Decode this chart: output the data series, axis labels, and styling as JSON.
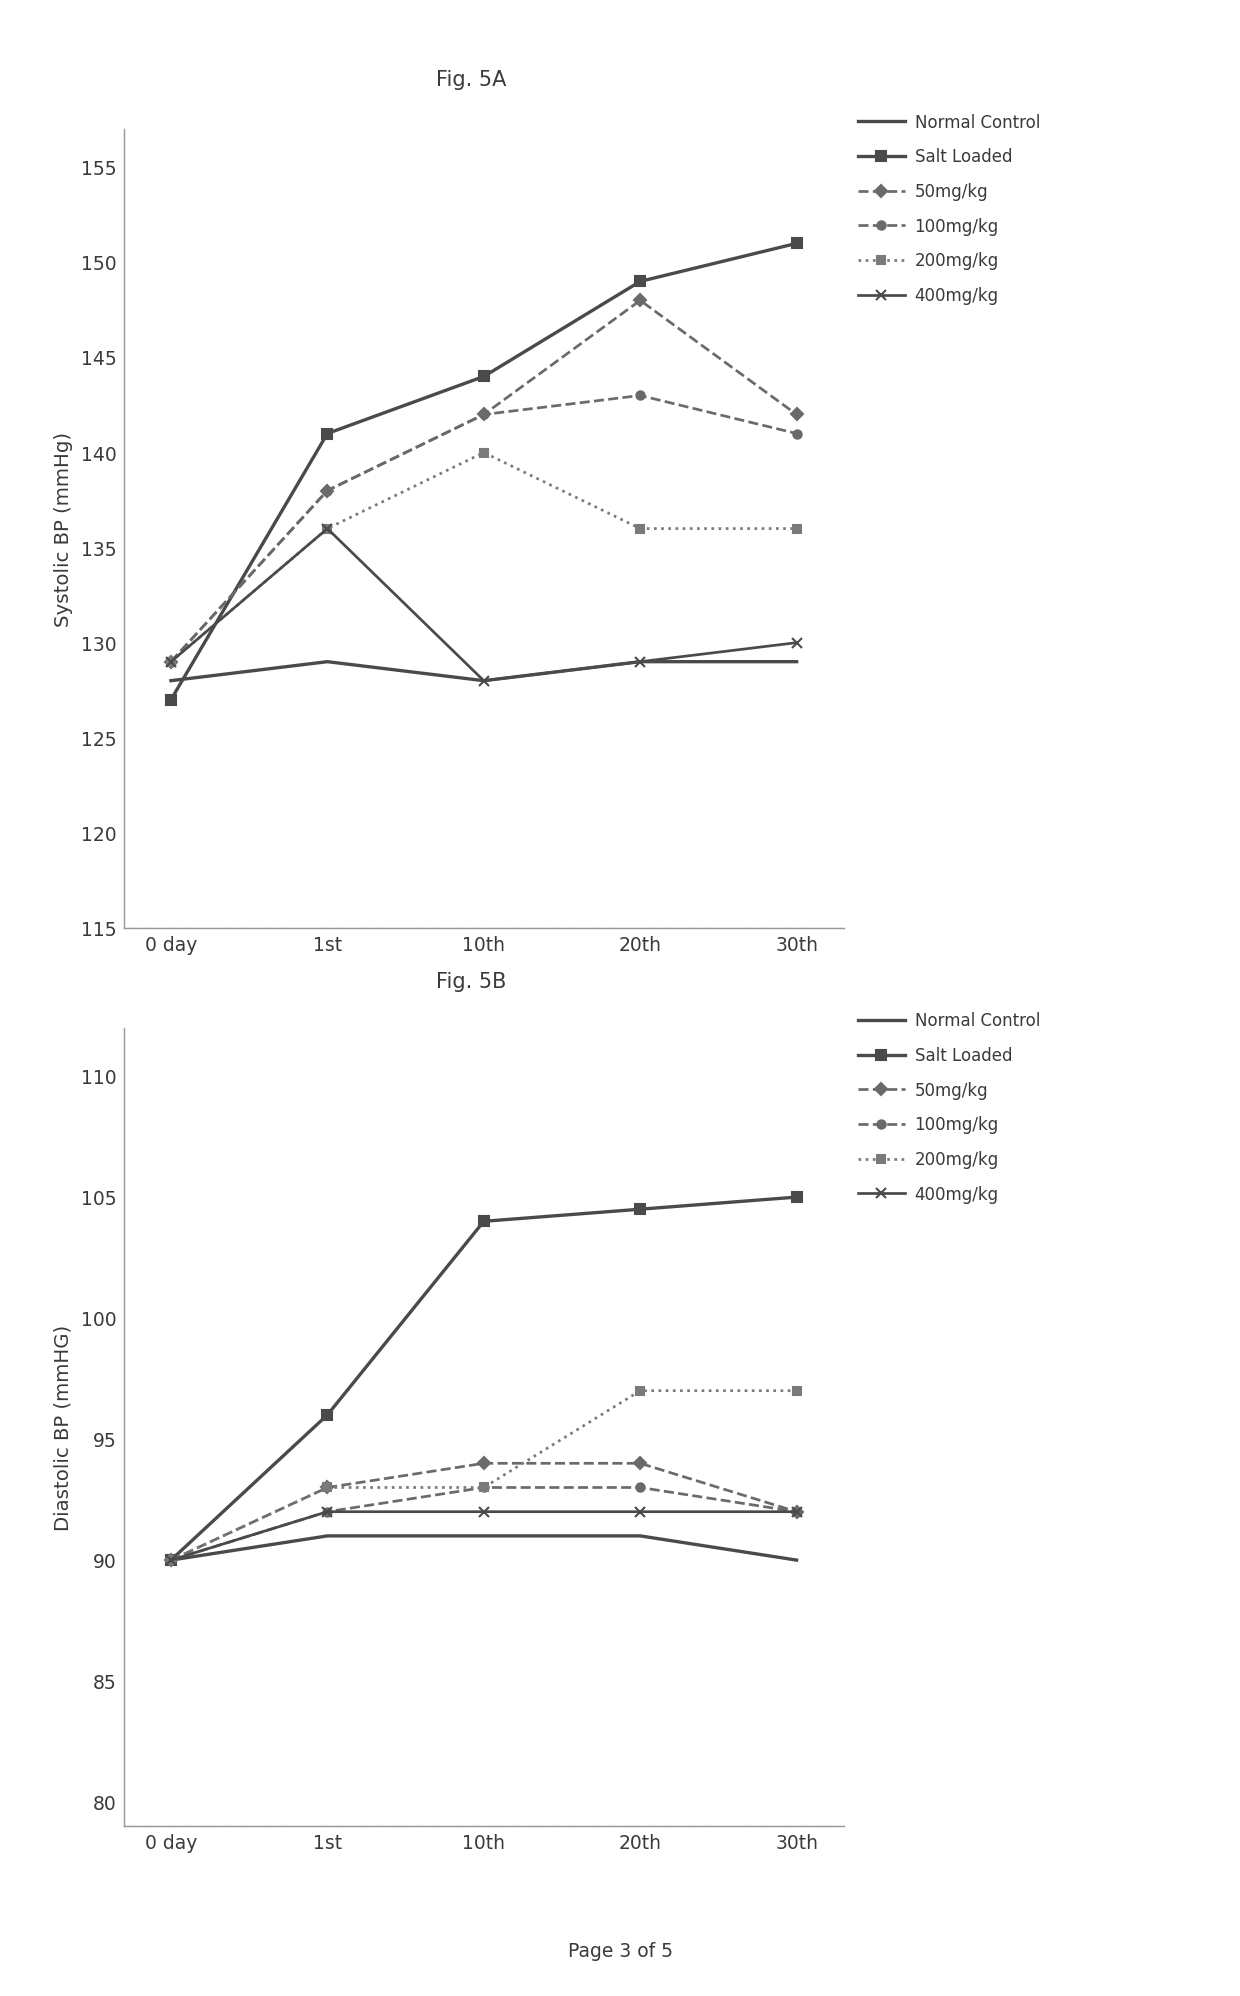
{
  "fig_title_a": "Fig. 5A",
  "fig_title_b": "Fig. 5B",
  "page_label": "Page 3 of 5",
  "x_labels": [
    "0 day",
    "1st",
    "10th",
    "20th",
    "30th"
  ],
  "x_positions": [
    0,
    1,
    2,
    3,
    4
  ],
  "systolic": {
    "ylabel": "Systolic BP (mmHg)",
    "ylim": [
      115,
      157
    ],
    "yticks": [
      115,
      120,
      125,
      130,
      135,
      140,
      145,
      150,
      155
    ],
    "series": {
      "Normal Control": [
        128,
        129,
        128,
        129,
        129
      ],
      "Salt Loaded": [
        127,
        141,
        144,
        149,
        151
      ],
      "50mg/kg": [
        129,
        138,
        142,
        148,
        142
      ],
      "100mg/kg": [
        129,
        138,
        142,
        143,
        141
      ],
      "200mg/kg": [
        129,
        136,
        140,
        136,
        136
      ],
      "400mg/kg": [
        129,
        136,
        128,
        129,
        130
      ]
    }
  },
  "diastolic": {
    "ylabel": "Diastolic BP (mmHG)",
    "ylim": [
      79,
      112
    ],
    "yticks": [
      80,
      85,
      90,
      95,
      100,
      105,
      110
    ],
    "series": {
      "Normal Control": [
        90,
        91,
        91,
        91,
        90
      ],
      "Salt Loaded": [
        90,
        96,
        104,
        104.5,
        105
      ],
      "50mg/kg": [
        90,
        93,
        94,
        94,
        92
      ],
      "100mg/kg": [
        90,
        92,
        93,
        93,
        92
      ],
      "200mg/kg": [
        90,
        93,
        93,
        97,
        97
      ],
      "400mg/kg": [
        90,
        92,
        92,
        92,
        92
      ]
    }
  },
  "legend_labels": [
    "Normal Control",
    "Salt Loaded",
    "50mg/kg",
    "100mg/kg",
    "200mg/kg",
    "400mg/kg"
  ],
  "line_styles": {
    "Normal Control": {
      "color": "#4a4a4a",
      "linestyle": "-",
      "marker": "",
      "linewidth": 1.6,
      "markersize": 0,
      "dashes": []
    },
    "Salt Loaded": {
      "color": "#4a4a4a",
      "linestyle": "-",
      "marker": "s",
      "linewidth": 1.6,
      "markersize": 5,
      "dashes": []
    },
    "50mg/kg": {
      "color": "#6a6a6a",
      "linestyle": "--",
      "marker": "D",
      "linewidth": 1.3,
      "markersize": 4,
      "dashes": [
        6,
        3
      ]
    },
    "100mg/kg": {
      "color": "#6a6a6a",
      "linestyle": "--",
      "marker": "o",
      "linewidth": 1.3,
      "markersize": 4,
      "dashes": [
        6,
        3
      ]
    },
    "200mg/kg": {
      "color": "#7a7a7a",
      "linestyle": ":",
      "marker": "s",
      "linewidth": 1.3,
      "markersize": 4,
      "dashes": [
        2,
        3
      ]
    },
    "400mg/kg": {
      "color": "#4a4a4a",
      "linestyle": "-",
      "marker": "x",
      "linewidth": 1.3,
      "markersize": 5,
      "dashes": []
    }
  },
  "background_color": "#ffffff",
  "font_color": "#3a3a3a",
  "tick_label_fontsize": 9,
  "axis_label_fontsize": 9.5,
  "legend_fontsize": 8,
  "title_fontsize": 10,
  "page_fontsize": 9
}
